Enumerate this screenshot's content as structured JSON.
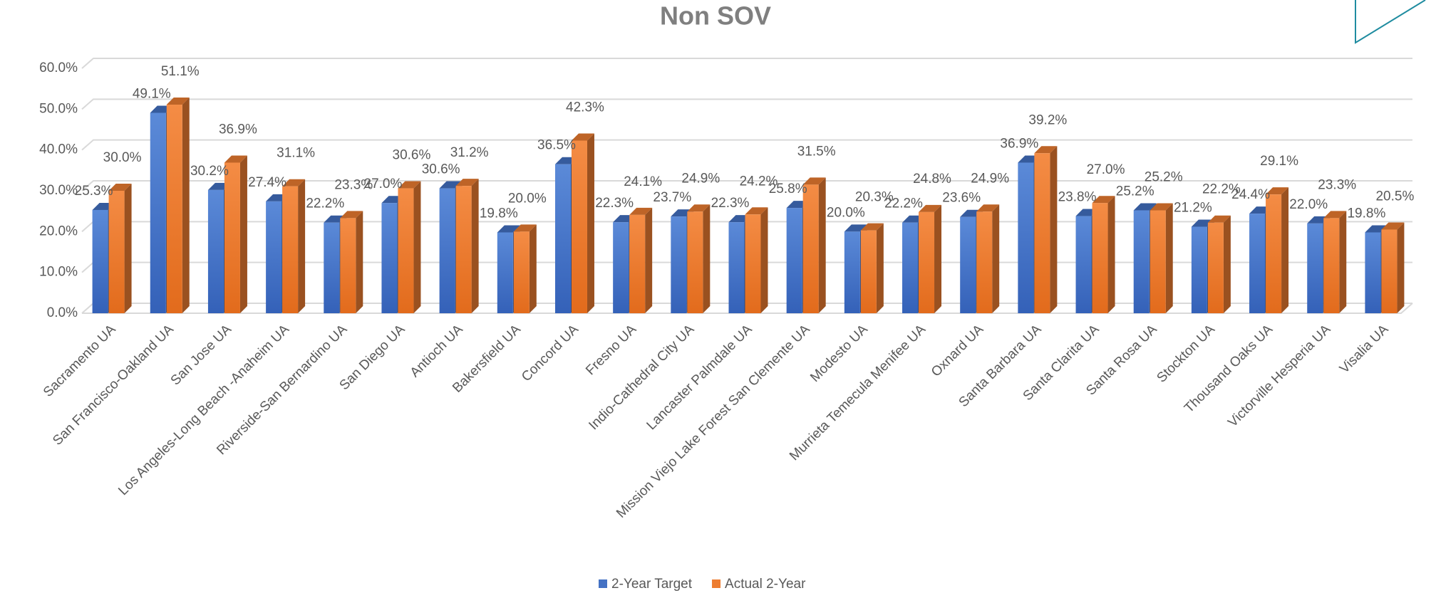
{
  "chart_data": {
    "type": "bar3d",
    "title": "Non SOV",
    "categories": [
      "Sacramento UA",
      "San Francisco-Oakland UA",
      "San Jose UA",
      "Los Angeles-Long Beach -Anaheim UA",
      "Riverside-San Bernardino UA",
      "San Diego UA",
      "Antioch UA",
      "Bakersfield UA",
      "Concord UA",
      "Fresno UA",
      "Indio-Cathedral City UA",
      "Lancaster Palmdale UA",
      "Mission Viejo Lake Forest San Clemente UA",
      "Modesto UA",
      "Murrieta Temecula Menifee UA",
      "Oxnard UA",
      "Santa Barbara UA",
      "Santa Clarita UA",
      "Santa Rosa UA",
      "Stockton UA",
      "Thousand Oaks UA",
      "Victorville Hesperia UA",
      "Visalia UA"
    ],
    "series": [
      {
        "name": "2-Year Target",
        "color": "#4472c4",
        "values": [
          25.3,
          49.1,
          30.2,
          27.4,
          22.2,
          27.0,
          30.6,
          19.8,
          36.5,
          22.3,
          23.7,
          22.3,
          25.8,
          20.0,
          22.2,
          23.6,
          36.9,
          23.8,
          25.2,
          21.2,
          24.4,
          22.0,
          19.8
        ],
        "value_labels": [
          "25.3%",
          "49.1%",
          "30.2%",
          "27.4%",
          "22.2%",
          "27.0%",
          "30.6%",
          "19.8%",
          "36.5%",
          "22.3%",
          "23.7%",
          "22.3%",
          "25.8%",
          "20.0%",
          "22.2%",
          "23.6%",
          "36.9%",
          "23.8%",
          "25.2%",
          "21.2%",
          "24.4%",
          "22.0%",
          "19.8%"
        ]
      },
      {
        "name": "Actual 2-Year",
        "color": "#ed7d31",
        "values": [
          30.0,
          51.1,
          36.9,
          31.1,
          23.3,
          30.6,
          31.2,
          20.0,
          42.3,
          24.1,
          24.9,
          24.2,
          31.5,
          20.3,
          24.8,
          24.9,
          39.2,
          27.0,
          25.2,
          22.2,
          29.1,
          23.3,
          20.5
        ],
        "value_labels": [
          "30.0%",
          "51.1%",
          "36.9%",
          "31.1%",
          "23.3%",
          "30.6%",
          "31.2%",
          "20.0%",
          "42.3%",
          "24.1%",
          "24.9%",
          "24.2%",
          "31.5%",
          "20.3%",
          "24.8%",
          "24.9%",
          "39.2%",
          "27.0%",
          "25.2%",
          "22.2%",
          "29.1%",
          "23.3%",
          "20.5%"
        ]
      }
    ],
    "ylim": [
      0,
      60
    ],
    "yticks": [
      {
        "value": 0,
        "label": "0.0%"
      },
      {
        "value": 10,
        "label": "10.0%"
      },
      {
        "value": 20,
        "label": "20.0%"
      },
      {
        "value": 30,
        "label": "30.0%"
      },
      {
        "value": 40,
        "label": "40.0%"
      },
      {
        "value": 50,
        "label": "50.0%"
      },
      {
        "value": 60,
        "label": "60.0%"
      }
    ],
    "grid": true,
    "legend": "bottom"
  }
}
